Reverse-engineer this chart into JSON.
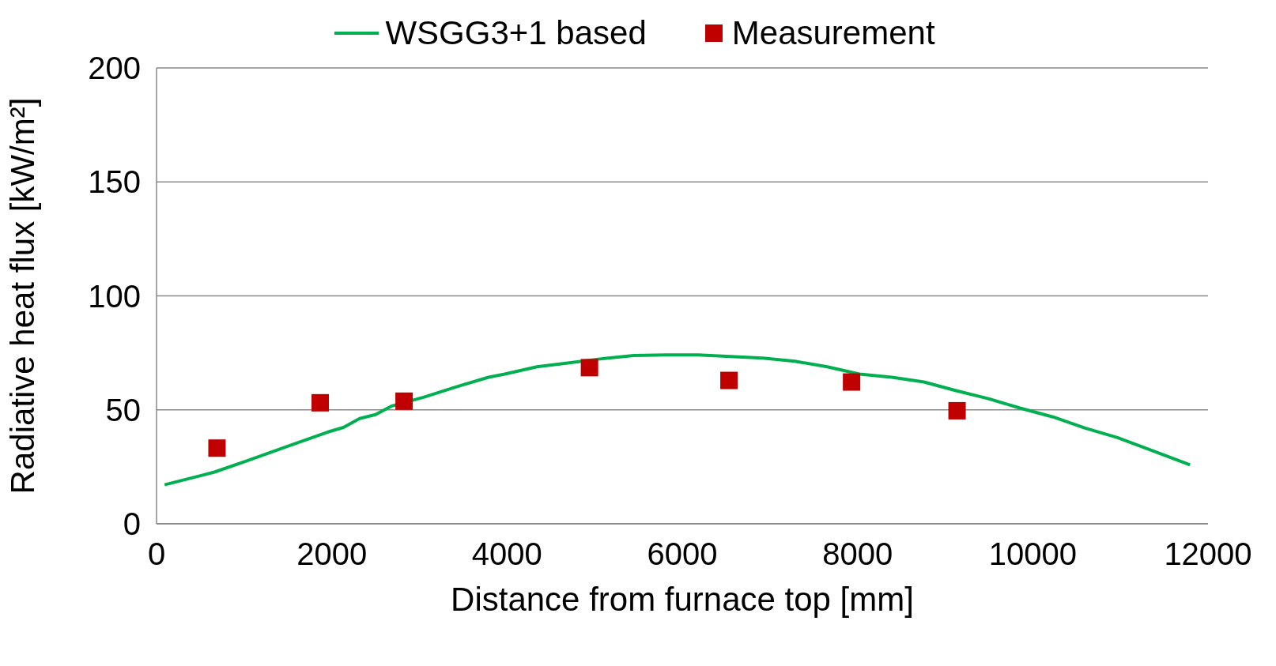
{
  "chart_data": {
    "type": "line",
    "xlabel": "Distance from furnace top [mm]",
    "ylabel": "Radiative heat flux [kW/m²]",
    "xlim": [
      0,
      12000
    ],
    "xticks": [
      0,
      2000,
      4000,
      6000,
      8000,
      10000,
      12000
    ],
    "ylim": [
      0,
      200
    ],
    "yticks": [
      0,
      50,
      100,
      150,
      200
    ],
    "grid": "y",
    "legend": "top",
    "series": [
      {
        "name": "WSGG3+1 based",
        "color": "#00b050",
        "marker": "none",
        "line_style": "solid",
        "x": [
          92,
          662,
          1030,
          1490,
          1950,
          2134,
          2318,
          2500,
          2686,
          3054,
          3422,
          3790,
          3974,
          4342,
          4710,
          5078,
          5446,
          5814,
          6182,
          6550,
          6918,
          7286,
          7654,
          8022,
          8390,
          8758,
          9126,
          9494,
          9862,
          10230,
          10598,
          10966,
          11334,
          11794
        ],
        "values": [
          17.1,
          22.7,
          27.6,
          33.9,
          40.2,
          42.3,
          46.2,
          47.9,
          51.7,
          55.6,
          60.1,
          64.3,
          65.7,
          68.9,
          70.6,
          72.4,
          73.8,
          74.1,
          74.1,
          73.4,
          72.7,
          71.3,
          68.9,
          65.7,
          64.3,
          62.2,
          58.4,
          54.9,
          50.7,
          46.9,
          42.0,
          37.8,
          32.5,
          25.9
        ]
      },
      {
        "name": "Measurement",
        "type": "scatter",
        "color": "#c00000",
        "marker": "square",
        "x": [
          690,
          1868,
          2825,
          4941,
          6533,
          7932,
          9136
        ],
        "values": [
          33.2,
          53.1,
          53.8,
          68.5,
          62.9,
          62.2,
          49.6
        ]
      }
    ]
  }
}
